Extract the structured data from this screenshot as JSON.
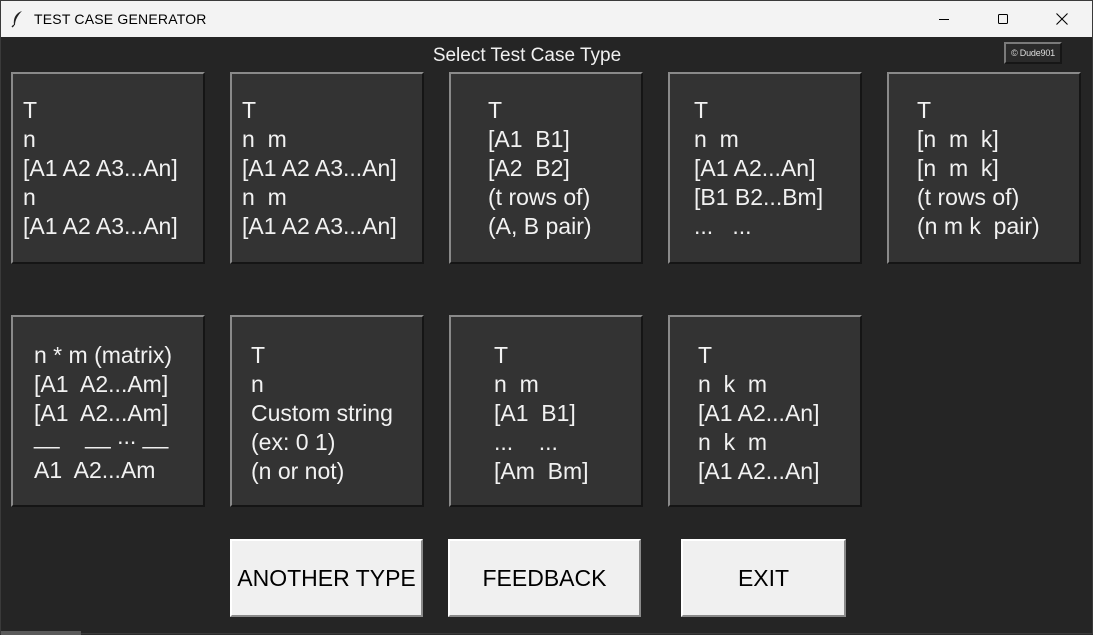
{
  "window": {
    "title": "TEST CASE GENERATOR",
    "icons": {
      "app": "feather-icon",
      "minimize": "minimize-icon",
      "maximize": "maximize-icon",
      "close": "close-icon"
    }
  },
  "header": {
    "label": "Select Test Case Type",
    "credit": "© Dude901"
  },
  "cards": [
    {
      "lines": [
        "T",
        "n",
        "[A1 A2 A3...An]",
        "n",
        "[A1 A2 A3...An]"
      ]
    },
    {
      "lines": [
        "T",
        "n  m",
        "[A1 A2 A3...An]",
        "n  m",
        "[A1 A2 A3...An]"
      ]
    },
    {
      "lines": [
        "T",
        "[A1  B1]",
        "[A2  B2]",
        "(t rows of)",
        "(A, B pair)"
      ]
    },
    {
      "lines": [
        "T",
        "n  m",
        "[A1 A2...An]",
        "[B1 B2...Bm]",
        "...   ..."
      ]
    },
    {
      "lines": [
        "T",
        "[n  m  k]",
        "[n  m  k]",
        "(t rows of)",
        "(n m k  pair)"
      ]
    },
    {
      "lines": [
        "n * m (matrix)",
        "[A1  A2...Am]",
        "[A1  A2...Am]",
        "__    __ ... __",
        "A1  A2...Am"
      ]
    },
    {
      "lines": [
        "T",
        "n",
        "Custom string",
        "(ex: 0 1)",
        "(n or not)"
      ]
    },
    {
      "lines": [
        "T",
        "n  m",
        "[A1  B1]",
        "...    ...",
        "[Am  Bm]"
      ]
    },
    {
      "lines": [
        "T",
        "n  k  m",
        "[A1 A2...An]",
        "n  k  m",
        "[A1 A2...An]"
      ]
    }
  ],
  "buttons": {
    "another_type": "ANOTHER TYPE",
    "feedback": "FEEDBACK",
    "exit": "EXIT"
  },
  "colors": {
    "background": "#252525",
    "card": "#333333",
    "button": "#f0f0f0",
    "text_light": "#f2f2f2"
  }
}
